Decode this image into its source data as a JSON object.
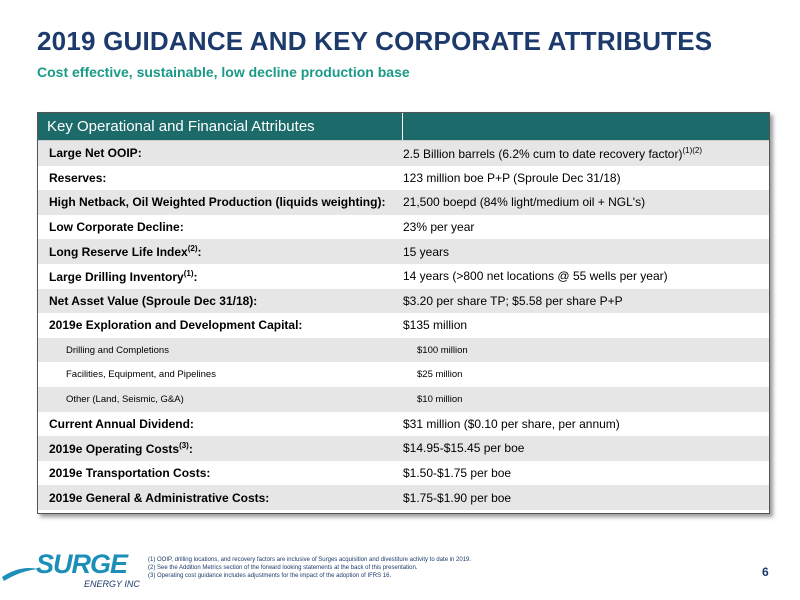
{
  "header": {
    "title": "2019 GUIDANCE AND KEY CORPORATE ATTRIBUTES",
    "subtitle": "Cost effective, sustainable, low decline production base"
  },
  "table": {
    "heading": "Key Operational and Financial Attributes",
    "rows": [
      {
        "label": "Large Net OOIP:",
        "value": "2.5 Billion barrels (6.2% cum to date recovery factor)",
        "value_sup": "(1)(2)"
      },
      {
        "label": "Reserves:",
        "value": "123 million boe P+P (Sproule Dec 31/18)"
      },
      {
        "label": "High Netback, Oil Weighted Production (liquids weighting):",
        "value": "21,500 boepd (84% light/medium oil + NGL's)"
      },
      {
        "label": "Low Corporate Decline:",
        "value": "23% per year"
      },
      {
        "label": "Long Reserve Life Index",
        "label_sup": "(2)",
        "label_end": ":",
        "value": "15 years"
      },
      {
        "label": "Large Drilling Inventory",
        "label_sup": "(1)",
        "label_end": ":",
        "value": "14 years (>800 net locations @ 55 wells per year)"
      },
      {
        "label": "Net Asset Value (Sproule Dec 31/18):",
        "value": "$3.20 per share TP; $5.58 per share P+P"
      },
      {
        "label": "2019e Exploration and Development Capital:",
        "value": "$135 million"
      },
      {
        "label": "Drilling and Completions",
        "value": "$100 million",
        "sub": true
      },
      {
        "label": "Facilities, Equipment, and Pipelines",
        "value": "$25 million",
        "sub": true
      },
      {
        "label": "Other (Land, Seismic, G&A)",
        "value": "$10 million",
        "sub": true
      },
      {
        "label": "Current Annual Dividend:",
        "value": "$31 million ($0.10 per share, per annum)"
      },
      {
        "label": "2019e Operating Costs",
        "label_sup": "(3)",
        "label_end": ":",
        "value": "$14.95-$15.45 per boe"
      },
      {
        "label": "2019e Transportation Costs:",
        "value": "$1.50-$1.75 per boe"
      },
      {
        "label": "2019e General & Administrative Costs:",
        "value": "$1.75-$1.90 per boe"
      }
    ]
  },
  "footer": {
    "logo": "SURGE",
    "logo_sub": "ENERGY INC",
    "notes": [
      "(1) OOIP, drilling locations, and recovery factors are inclusive of Surges acquisition and divestiture activity to date in 2019.",
      "(2) See the Addition Metrics section of the forward looking statements at the back of this presentation.",
      "(3) Operating cost guidance includes adjustments for the impact of the adoption of IFRS 16."
    ],
    "page": "6"
  }
}
